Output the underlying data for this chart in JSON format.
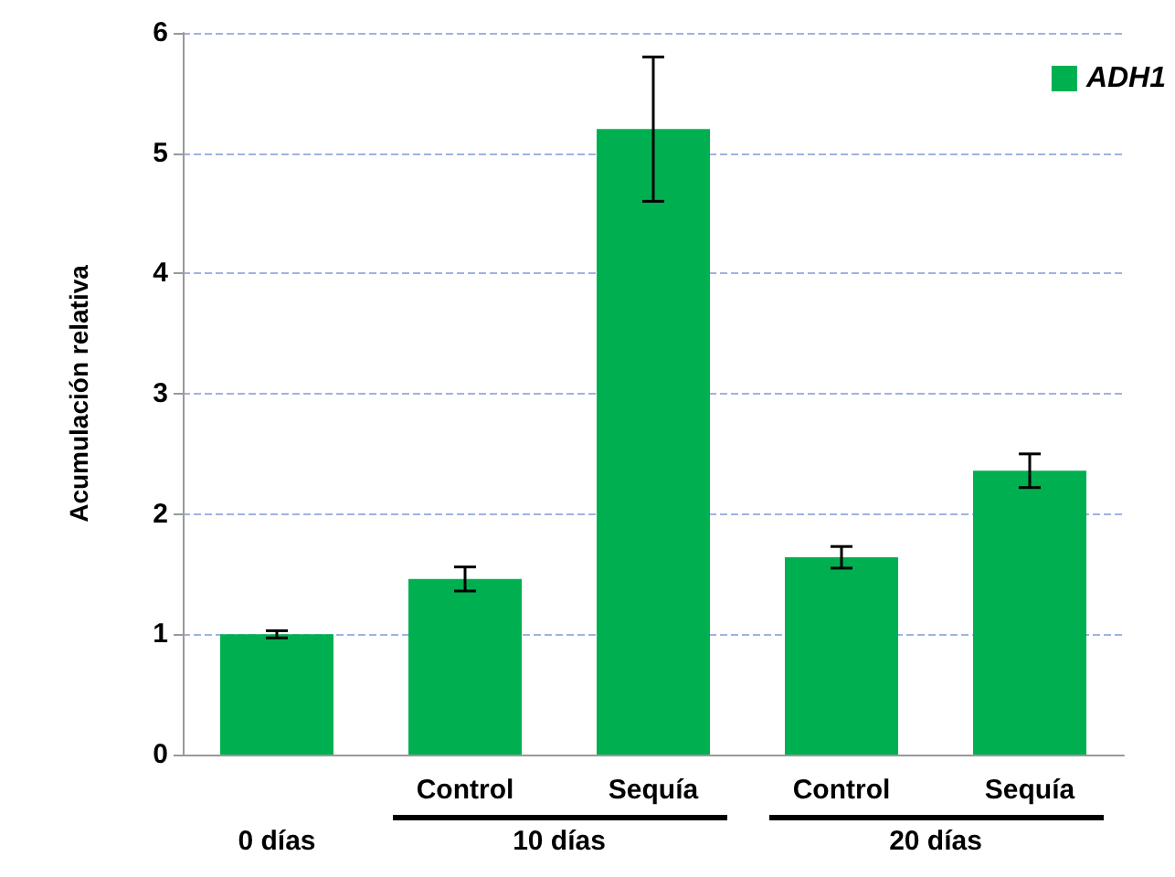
{
  "chart_data": {
    "type": "bar",
    "ylabel": "Acumulación relativa",
    "categories": [
      null,
      "Control",
      "Sequía",
      "Control",
      "Sequía"
    ],
    "series": [
      {
        "name": "ADH1",
        "color": "#00b050",
        "values": [
          1.0,
          1.46,
          5.2,
          1.64,
          2.36
        ],
        "errors": [
          0.03,
          0.1,
          0.6,
          0.09,
          0.14
        ]
      }
    ],
    "ylim": [
      0,
      6
    ],
    "yticks": [
      0,
      1,
      2,
      3,
      4,
      5,
      6
    ],
    "grid": "y",
    "legend": "top right",
    "annotations": [
      "0 días",
      "10 días",
      "20 días"
    ]
  }
}
